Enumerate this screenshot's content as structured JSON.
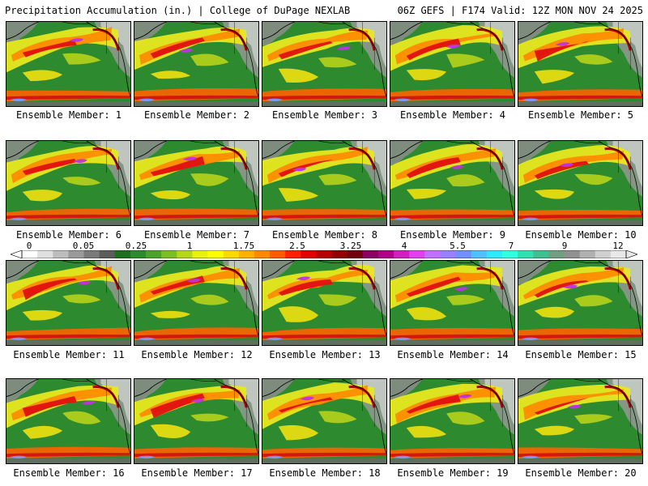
{
  "header": {
    "title": "Precipitation Accumulation (in.) | College of DuPage NEXLAB",
    "run_info": "06Z GEFS | F174 Valid: 12Z MON NOV 24 2025"
  },
  "members": [
    {
      "label": "Ensemble Member: 1"
    },
    {
      "label": "Ensemble Member: 2"
    },
    {
      "label": "Ensemble Member: 3"
    },
    {
      "label": "Ensemble Member: 4"
    },
    {
      "label": "Ensemble Member: 5"
    },
    {
      "label": "Ensemble Member: 6"
    },
    {
      "label": "Ensemble Member: 7"
    },
    {
      "label": "Ensemble Member: 8"
    },
    {
      "label": "Ensemble Member: 9"
    },
    {
      "label": "Ensemble Member: 10"
    },
    {
      "label": "Ensemble Member: 11"
    },
    {
      "label": "Ensemble Member: 12"
    },
    {
      "label": "Ensemble Member: 13"
    },
    {
      "label": "Ensemble Member: 14"
    },
    {
      "label": "Ensemble Member: 15"
    },
    {
      "label": "Ensemble Member: 16"
    },
    {
      "label": "Ensemble Member: 17"
    },
    {
      "label": "Ensemble Member: 18"
    },
    {
      "label": "Ensemble Member: 19"
    },
    {
      "label": "Ensemble Member: 20"
    }
  ],
  "colorbar": {
    "tick_labels": [
      "0",
      "0.05",
      "0.25",
      "1",
      "1.75",
      "2.5",
      "3.25",
      "4",
      "5.5",
      "7",
      "9",
      "12"
    ],
    "colors": [
      "#ffffff",
      "#e0e0e0",
      "#bdbdbd",
      "#9a9a9a",
      "#7a7a7a",
      "#5c5c5c",
      "#1f6f1f",
      "#2e8a2e",
      "#4ca32c",
      "#7cbf25",
      "#b5d81c",
      "#e8f010",
      "#ffff00",
      "#ffd800",
      "#ffb000",
      "#ff8a00",
      "#ff5a00",
      "#ff2000",
      "#e00000",
      "#b80000",
      "#900000",
      "#700010",
      "#8b0060",
      "#b0008a",
      "#d020c0",
      "#e040f0",
      "#c070ff",
      "#9a80ff",
      "#7090ff",
      "#50c0ff",
      "#30e8ff",
      "#30ffe0",
      "#30e0b0",
      "#40c090",
      "#70a080",
      "#909090",
      "#b0b0b0",
      "#d0d0d0",
      "#e8e8e8"
    ]
  }
}
